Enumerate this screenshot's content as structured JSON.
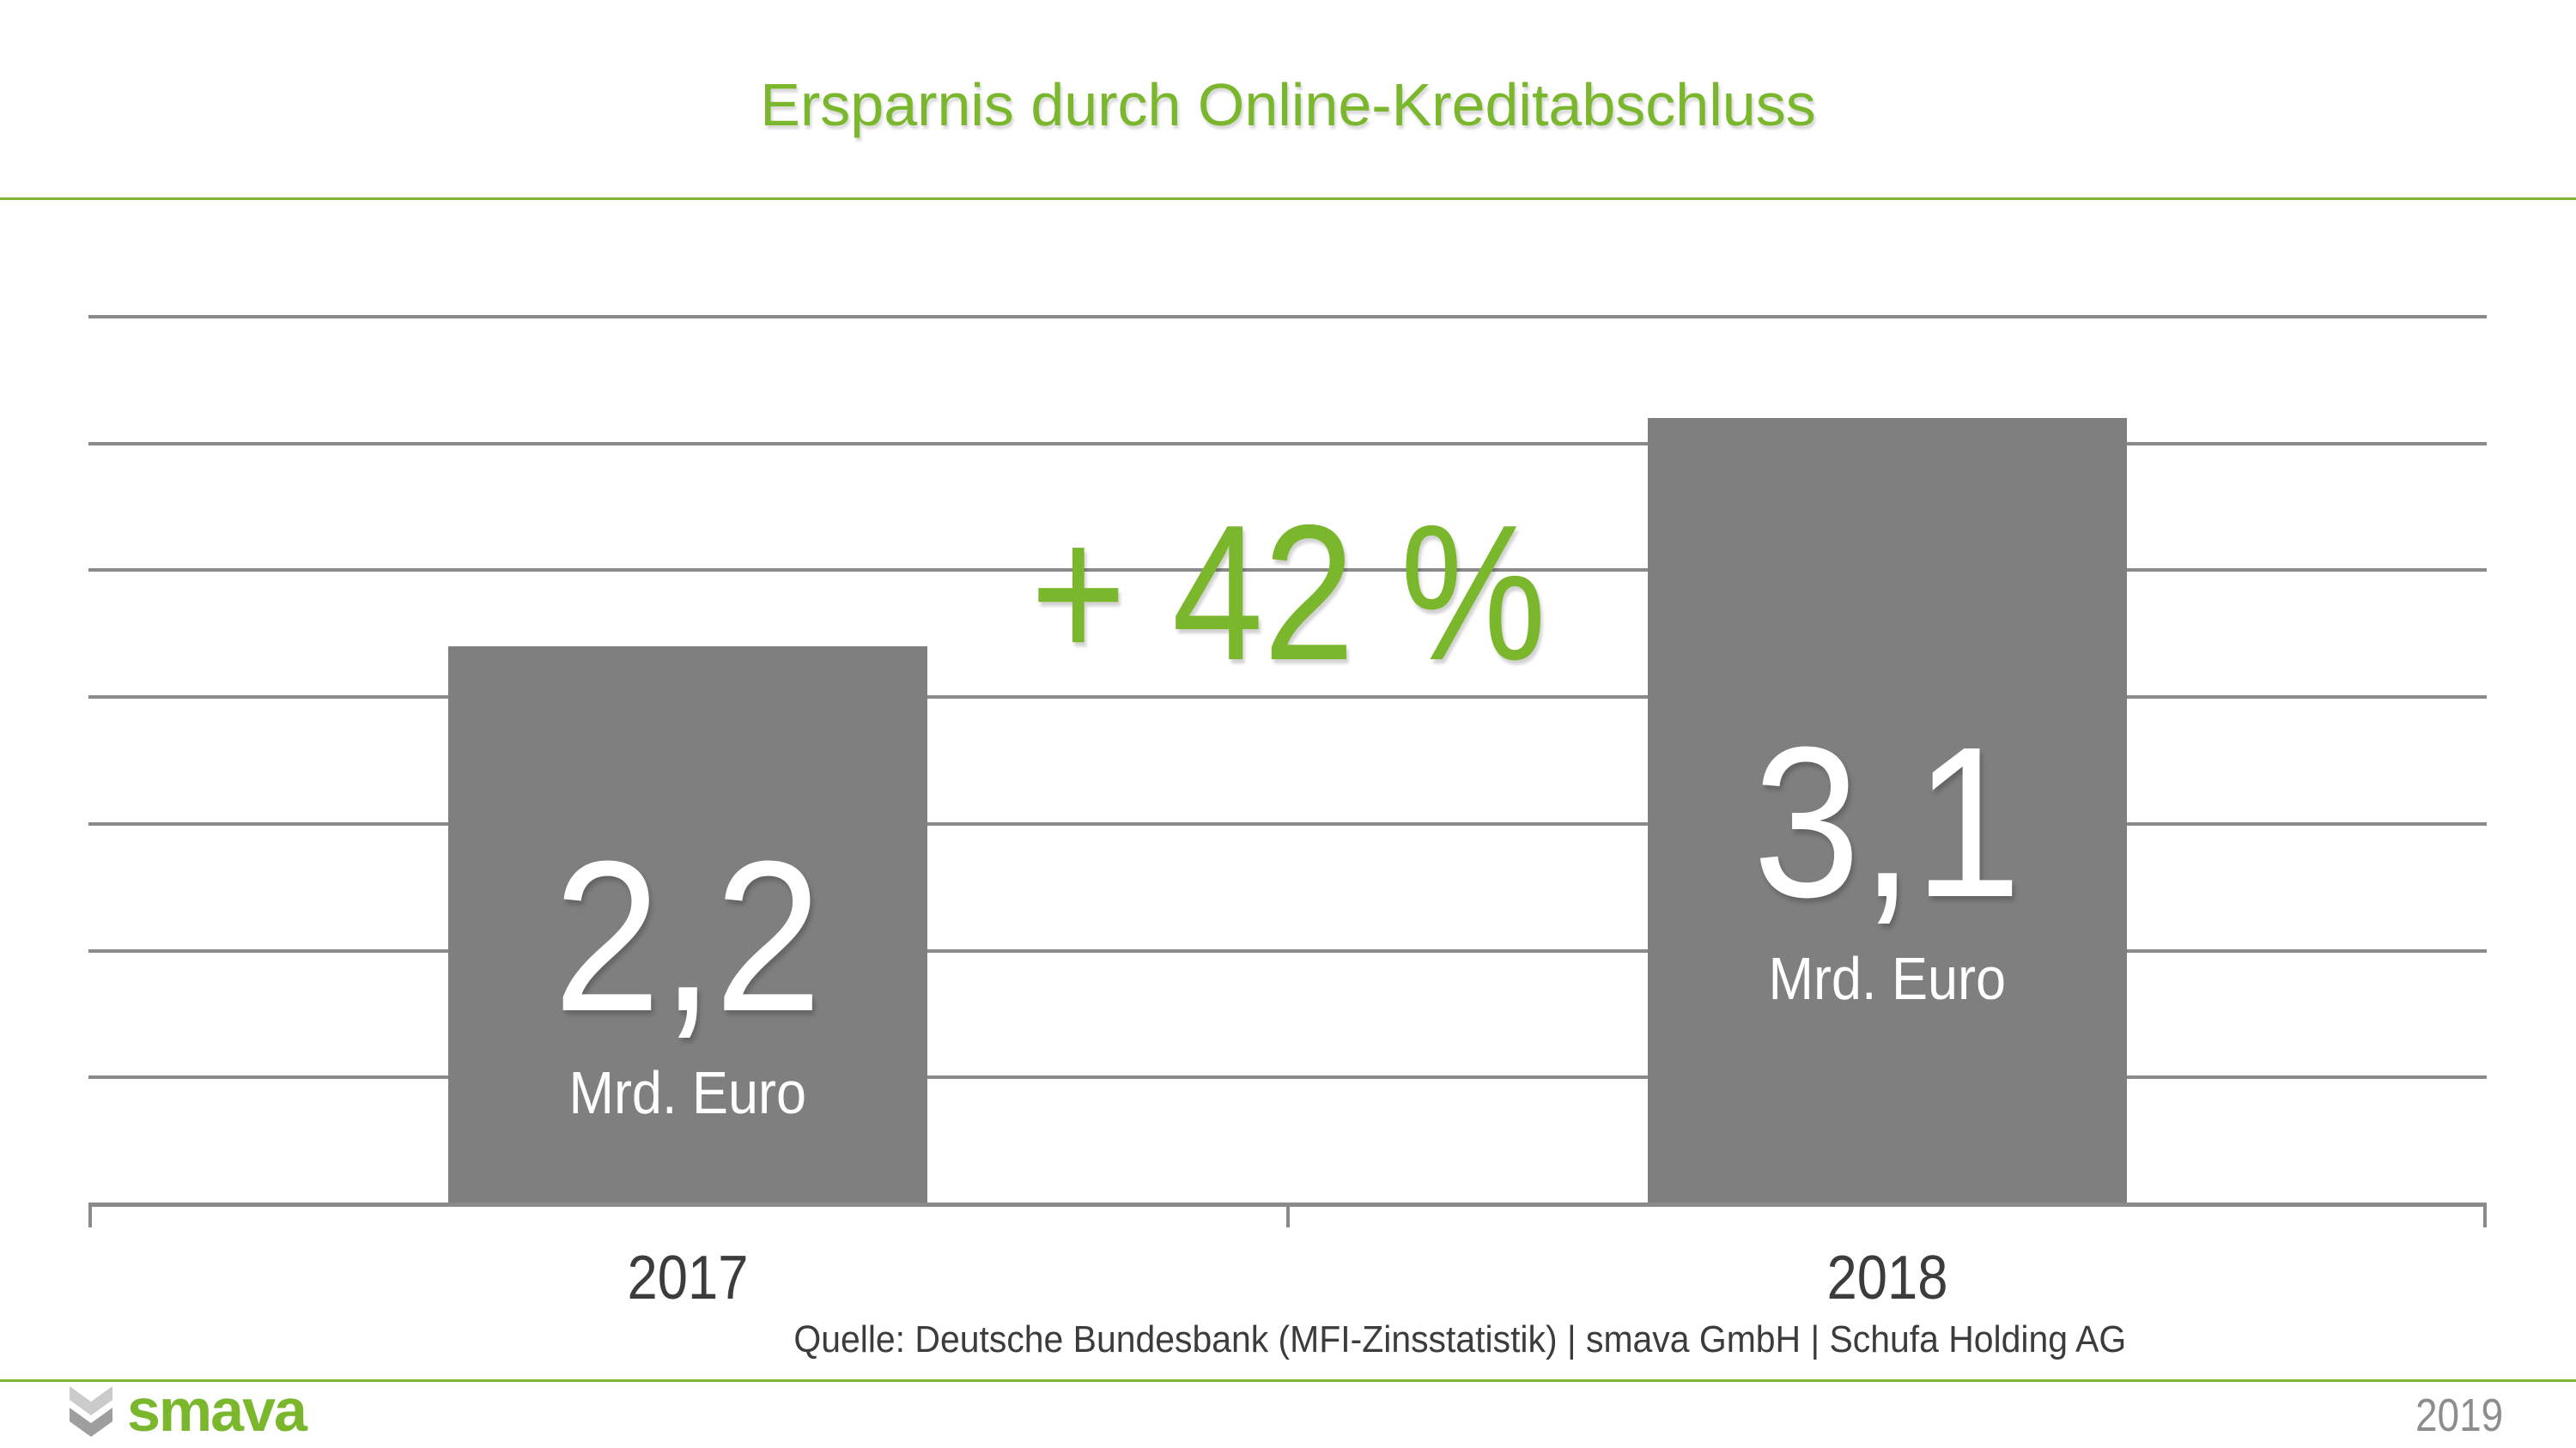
{
  "header": {
    "title": "Ersparnis durch Online-Kreditabschluss"
  },
  "chart_data": {
    "type": "bar",
    "title": "Ersparnis durch Online-Kreditabschluss",
    "categories": [
      "2017",
      "2018"
    ],
    "values": [
      2.2,
      3.1
    ],
    "bar_labels": [
      {
        "number": "2,2",
        "unit": "Mrd. Euro"
      },
      {
        "number": "3,1",
        "unit": "Mrd. Euro"
      }
    ],
    "annotation": "+ 42 %",
    "xlabel": "",
    "ylabel": "",
    "ylim": [
      0,
      3.5
    ],
    "grid_step": 0.5,
    "grid": true,
    "legend": false,
    "colors": {
      "bar": "#7F7F7F",
      "grid": "#8A8A8A",
      "annotation": "#7AB72C",
      "bar_label": "#FFFFFF",
      "category_label": "#3C3C3C"
    }
  },
  "source": {
    "text": "Quelle: Deutsche Bundesbank (MFI-Zinsstatistik) | smava GmbH | Schufa Holding AG"
  },
  "footer": {
    "brand": "smava",
    "year": "2019"
  },
  "theme": {
    "green": "#7AB72C",
    "rule_green": "#7FB435",
    "text_dark": "#3C3C3C",
    "text_gray": "#8D8D8D",
    "background": "#FFFFFF"
  }
}
